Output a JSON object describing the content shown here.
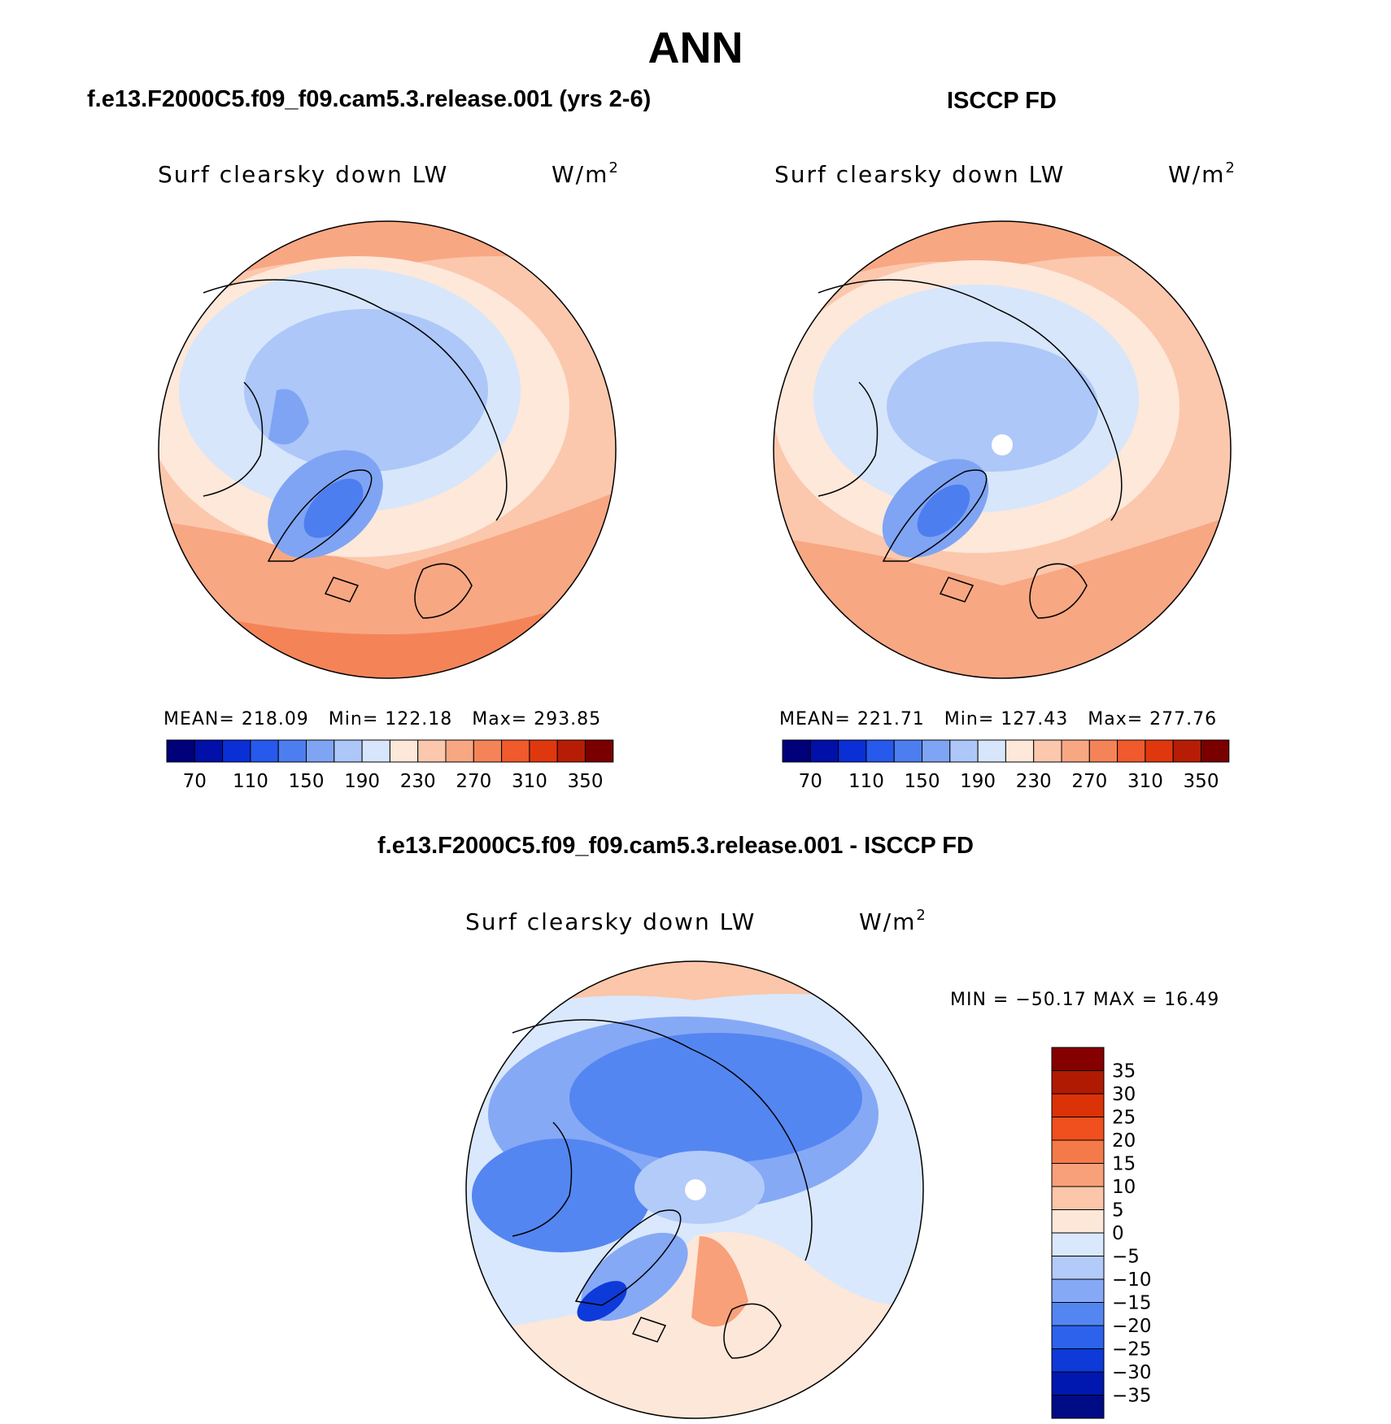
{
  "title": "ANN",
  "palette": {
    "abs": [
      "#00007a",
      "#0010a8",
      "#0a2fd6",
      "#2659ec",
      "#4d7ef0",
      "#7fa4f4",
      "#adc7f8",
      "#d7e6fb",
      "#fde8da",
      "#fbc8ad",
      "#f8a783",
      "#f48457",
      "#f05a2c",
      "#e0380e",
      "#b71d05",
      "#7a0000"
    ],
    "diff": [
      "#000b86",
      "#0018b0",
      "#0d3ad8",
      "#2d62ec",
      "#5486f1",
      "#86a9f6",
      "#b3cbf9",
      "#d9e8fc",
      "#fde7d9",
      "#fbc6a9",
      "#f8a07a",
      "#f47a49",
      "#f0501d",
      "#dc3208",
      "#b01a02",
      "#850000"
    ]
  },
  "panels": [
    {
      "case_title": "f.e13.F2000C5.f09_f09.cam5.3.release.001 (yrs 2-6)",
      "variable": "Surf clearsky down LW",
      "units_base": "W/m",
      "units_exp": "2",
      "mean_label": "MEAN=",
      "mean": "218.09",
      "min_label": "Min=",
      "min": "122.18",
      "max_label": "Max=",
      "max": "293.85",
      "colorbar_ticks": [
        "70",
        "110",
        "150",
        "190",
        "230",
        "270",
        "310",
        "350"
      ],
      "pole_hole": false
    },
    {
      "case_title": "ISCCP FD",
      "variable": "Surf clearsky down LW",
      "units_base": "W/m",
      "units_exp": "2",
      "mean_label": "MEAN=",
      "mean": "221.71",
      "min_label": "Min=",
      "min": "127.43",
      "max_label": "Max=",
      "max": "277.76",
      "colorbar_ticks": [
        "70",
        "110",
        "150",
        "190",
        "230",
        "270",
        "310",
        "350"
      ],
      "pole_hole": true
    }
  ],
  "difference": {
    "case_title": "f.e13.F2000C5.f09_f09.cam5.3.release.001 - ISCCP FD",
    "variable": "Surf clearsky down LW",
    "units_base": "W/m",
    "units_exp": "2",
    "minmax_text": "MIN = −50.17 MAX =   16.49",
    "colorbar_ticks": [
      "35",
      "30",
      "25",
      "20",
      "15",
      "10",
      "5",
      "0",
      "−5",
      "−10",
      "−15",
      "−20",
      "−25",
      "−30",
      "−35"
    ]
  }
}
